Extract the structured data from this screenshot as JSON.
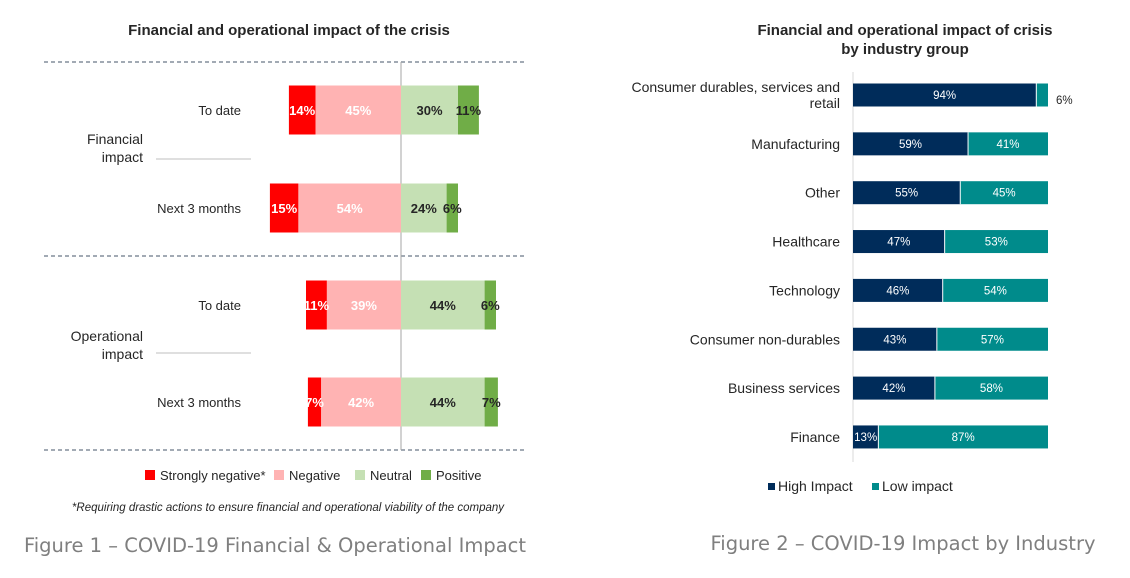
{
  "charts": [
    {
      "type": "bar",
      "stacked": "diverging",
      "orientation": "horizontal",
      "title": "Financial and operational impact of the crisis",
      "groups": [
        {
          "name": "Financial impact",
          "name_lines": [
            "Financial",
            "impact"
          ]
        },
        {
          "name": "Operational impact",
          "name_lines": [
            "Operational",
            "impact"
          ]
        }
      ],
      "categories": [
        "To date",
        "Next 3 months",
        "To date",
        "Next 3 months"
      ],
      "category_group": [
        0,
        0,
        1,
        1
      ],
      "series": [
        {
          "name": "Strongly negative*",
          "values": [
            14,
            15,
            11,
            7
          ],
          "labels": [
            "14%",
            "15%",
            "11%",
            "7%"
          ],
          "color": "#ff0000"
        },
        {
          "name": "Negative",
          "values": [
            45,
            54,
            39,
            42
          ],
          "labels": [
            "45%",
            "54%",
            "39%",
            "42%"
          ],
          "color": "#ffb3b3"
        },
        {
          "name": "Neutral",
          "values": [
            30,
            24,
            44,
            44
          ],
          "labels": [
            "30%",
            "24%",
            "44%",
            "44%"
          ],
          "color": "#c5e0b4"
        },
        {
          "name": "Positive",
          "values": [
            11,
            6,
            6,
            7
          ],
          "labels": [
            "11%",
            "6%",
            "6%",
            "7%"
          ],
          "color": "#70ad47"
        }
      ],
      "footnote": "*Requiring drastic actions to ensure financial and operational viability of the company",
      "legend_position": "bottom",
      "caption": "Figure 1 – COVID-19 Financial & Operational Impact"
    },
    {
      "type": "bar",
      "stacked": "percent",
      "orientation": "horizontal",
      "title_lines": [
        "Financial and operational impact of crisis",
        "by industry group"
      ],
      "categories": [
        {
          "name": "Consumer durables, services and retail",
          "lines": [
            "Consumer durables, services and",
            "retail"
          ]
        },
        {
          "name": "Manufacturing",
          "lines": [
            "Manufacturing"
          ]
        },
        {
          "name": "Other",
          "lines": [
            "Other"
          ]
        },
        {
          "name": "Healthcare",
          "lines": [
            "Healthcare"
          ]
        },
        {
          "name": "Technology",
          "lines": [
            "Technology"
          ]
        },
        {
          "name": "Consumer non-durables",
          "lines": [
            "Consumer non-durables"
          ]
        },
        {
          "name": "Business services",
          "lines": [
            "Business services"
          ]
        },
        {
          "name": "Finance",
          "lines": [
            "Finance"
          ]
        }
      ],
      "series": [
        {
          "name": "High Impact",
          "values": [
            94,
            59,
            55,
            47,
            46,
            43,
            42,
            13
          ],
          "labels": [
            "94%",
            "59%",
            "55%",
            "47%",
            "46%",
            "43%",
            "42%",
            "13%"
          ],
          "color": "#002c5a"
        },
        {
          "name": "Low impact",
          "values": [
            6,
            41,
            45,
            53,
            54,
            57,
            58,
            87
          ],
          "labels": [
            "6%",
            "41%",
            "45%",
            "53%",
            "54%",
            "57%",
            "58%",
            "87%"
          ],
          "color": "#008b8b"
        }
      ],
      "legend_position": "bottom",
      "caption": "Figure 2 – COVID-19 Impact by Industry"
    }
  ]
}
